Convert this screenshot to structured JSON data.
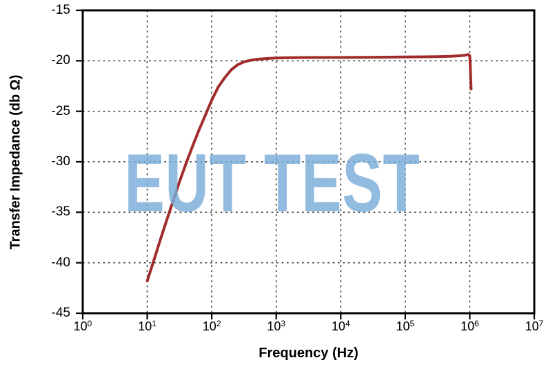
{
  "watermark": {
    "text": "EUT TEST",
    "color": "#79ADD8"
  },
  "axes": {
    "x_title": "Frequency (Hz)",
    "y_title": "Transfer Impedance (db Ω)",
    "x_tick_exponents": [
      0,
      1,
      2,
      3,
      4,
      5,
      6,
      7
    ],
    "y_ticks": [
      -15,
      -20,
      -25,
      -30,
      -35,
      -40,
      -45
    ],
    "x_gridline_exponents": [
      1,
      2,
      3,
      4,
      5,
      6
    ],
    "y_gridlines": [
      -20,
      -25,
      -30,
      -35,
      -40
    ],
    "frame_color": "#000000",
    "gridline_color": "#3a3a3a"
  },
  "chart_data": {
    "type": "line",
    "title": "",
    "xlabel": "Frequency (Hz)",
    "ylabel": "Transfer Impedance (db Ω)",
    "x_scale": "log",
    "xlim": [
      1,
      10000000
    ],
    "ylim": [
      -45,
      -15
    ],
    "grid": "dotted",
    "legend": "none",
    "annotations": [
      "EUT TEST watermark, light blue, centered"
    ],
    "series": [
      {
        "name": "transfer-impedance",
        "color": "#A02C2C",
        "stroke_width": 4,
        "points": [
          [
            10,
            -41.8
          ],
          [
            12.6,
            -39.8
          ],
          [
            15.8,
            -37.8
          ],
          [
            20,
            -35.8
          ],
          [
            25.1,
            -33.9
          ],
          [
            31.6,
            -32.0
          ],
          [
            39.8,
            -30.2
          ],
          [
            50.1,
            -28.5
          ],
          [
            63.1,
            -26.9
          ],
          [
            79.4,
            -25.4
          ],
          [
            100,
            -23.9
          ],
          [
            126,
            -22.6
          ],
          [
            158,
            -21.7
          ],
          [
            200,
            -20.9
          ],
          [
            251,
            -20.4
          ],
          [
            316,
            -20.1
          ],
          [
            398,
            -19.95
          ],
          [
            501,
            -19.85
          ],
          [
            631,
            -19.8
          ],
          [
            794,
            -19.75
          ],
          [
            1000,
            -19.72
          ],
          [
            1580,
            -19.7
          ],
          [
            2510,
            -19.68
          ],
          [
            3980,
            -19.67
          ],
          [
            10000,
            -19.67
          ],
          [
            31600,
            -19.65
          ],
          [
            100000,
            -19.62
          ],
          [
            200000,
            -19.6
          ],
          [
            316000,
            -19.58
          ],
          [
            500000,
            -19.55
          ],
          [
            700000,
            -19.5
          ],
          [
            850000,
            -19.45
          ],
          [
            950000,
            -19.38
          ],
          [
            1000000,
            -19.5
          ],
          [
            1015000,
            -20.3
          ],
          [
            1035000,
            -21.8
          ],
          [
            1050000,
            -22.8
          ]
        ]
      }
    ]
  }
}
